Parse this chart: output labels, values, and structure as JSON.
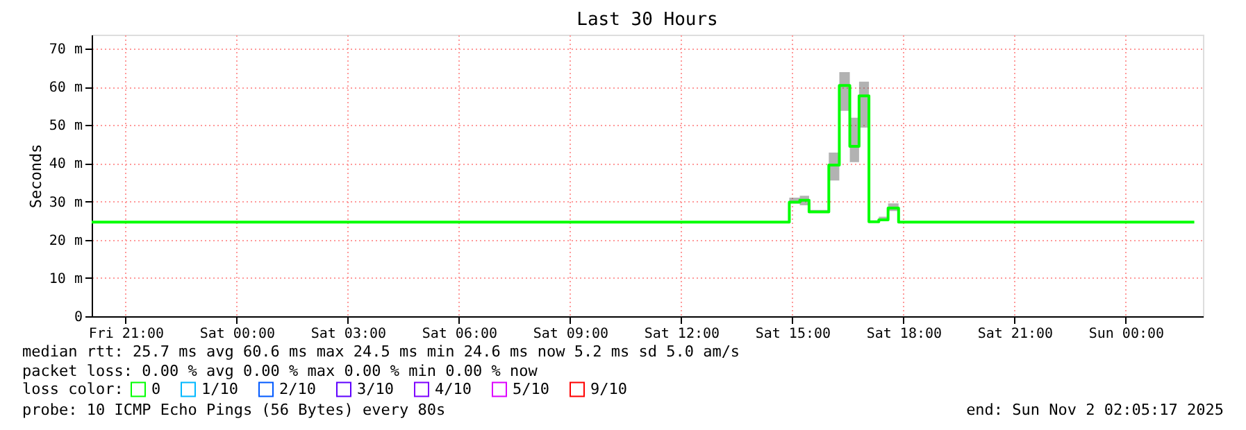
{
  "chart_data": {
    "type": "step",
    "title": "Last 30 Hours",
    "ylabel": "Seconds",
    "legend_title": "loss color:",
    "x": [
      "2025-10-31T20:05",
      "2025-11-01T14:55",
      "2025-11-01T15:12",
      "2025-11-01T15:27",
      "2025-11-01T15:59",
      "2025-11-01T16:16",
      "2025-11-01T16:33",
      "2025-11-01T16:48",
      "2025-11-01T17:04",
      "2025-11-01T17:20",
      "2025-11-01T17:35",
      "2025-11-01T17:52",
      "2025-11-02T01:51"
    ],
    "series": [
      {
        "name": "0",
        "color": "#00ff00",
        "values": [
          24.6,
          29.8,
          30.3,
          27.3,
          39.5,
          60.3,
          44.4,
          57.6,
          24.7,
          25.2,
          28.3,
          24.6,
          24.6
        ],
        "lower": [
          24.6,
          29.5,
          29,
          27,
          35.5,
          53.7,
          40.3,
          49.3,
          24.5,
          25,
          27.5,
          24.6,
          24.6
        ],
        "upper": [
          24.6,
          31,
          31.5,
          27.8,
          42.8,
          63.8,
          51.9,
          61.3,
          25,
          26,
          29.5,
          24.6,
          24.6
        ]
      },
      {
        "name": "1/10",
        "color": "#00b8ff",
        "values": [
          null,
          null,
          null,
          null,
          null,
          null,
          null,
          null,
          null,
          null,
          null,
          null,
          null
        ]
      },
      {
        "name": "2/10",
        "color": "#0059ff",
        "values": [
          null,
          null,
          null,
          null,
          null,
          null,
          null,
          null,
          null,
          null,
          null,
          null,
          null
        ]
      },
      {
        "name": "3/10",
        "color": "#5e00ff",
        "values": [
          null,
          null,
          null,
          null,
          null,
          null,
          null,
          null,
          null,
          null,
          null,
          null,
          null
        ]
      },
      {
        "name": "4/10",
        "color": "#7e00ff",
        "values": [
          null,
          null,
          null,
          null,
          null,
          null,
          null,
          null,
          null,
          null,
          null,
          null,
          null
        ]
      },
      {
        "name": "5/10",
        "color": "#dd00ff",
        "values": [
          null,
          null,
          null,
          null,
          null,
          null,
          null,
          null,
          null,
          null,
          null,
          null,
          null
        ]
      },
      {
        "name": "9/10",
        "color": "#ff0000",
        "values": [
          null,
          null,
          null,
          null,
          null,
          null,
          null,
          null,
          null,
          null,
          null,
          null,
          null
        ]
      }
    ],
    "xlim": [
      "2025-10-31T20:05",
      "2025-11-02T02:05"
    ],
    "xticks": [
      {
        "value": "2025-10-31T21:00",
        "label": "Fri 21:00"
      },
      {
        "value": "2025-11-01T00:00",
        "label": "Sat 00:00"
      },
      {
        "value": "2025-11-01T03:00",
        "label": "Sat 03:00"
      },
      {
        "value": "2025-11-01T06:00",
        "label": "Sat 06:00"
      },
      {
        "value": "2025-11-01T09:00",
        "label": "Sat 09:00"
      },
      {
        "value": "2025-11-01T12:00",
        "label": "Sat 12:00"
      },
      {
        "value": "2025-11-01T15:00",
        "label": "Sat 15:00"
      },
      {
        "value": "2025-11-01T18:00",
        "label": "Sat 18:00"
      },
      {
        "value": "2025-11-01T21:00",
        "label": "Sat 21:00"
      },
      {
        "value": "2025-11-02T00:00",
        "label": "Sun 00:00"
      }
    ],
    "ylim": [
      0,
      73.6
    ],
    "yticks": [
      0,
      {
        "value": 10,
        "label": "10 m"
      },
      {
        "value": 20,
        "label": "20 m"
      },
      {
        "value": 30,
        "label": "30 m"
      },
      {
        "value": 40,
        "label": "40 m"
      },
      {
        "value": 50,
        "label": "50 m"
      },
      {
        "value": 60,
        "label": "60 m"
      },
      {
        "value": 70,
        "label": "70 m"
      }
    ],
    "grid": true,
    "legend": "bottom",
    "annotations": [
      "median rtt:  25.7 ms avg  60.6 ms max  24.5 ms min  24.6 ms now  5.2 ms sd  5.0   am/s",
      "packet loss: 0.00 % avg  0.00 % max  0.00 % min  0.00 % now",
      "probe:       10 ICMP Echo Pings (56 Bytes) every 80s",
      "end: Sun Nov  2 02:05:17 2025"
    ]
  }
}
